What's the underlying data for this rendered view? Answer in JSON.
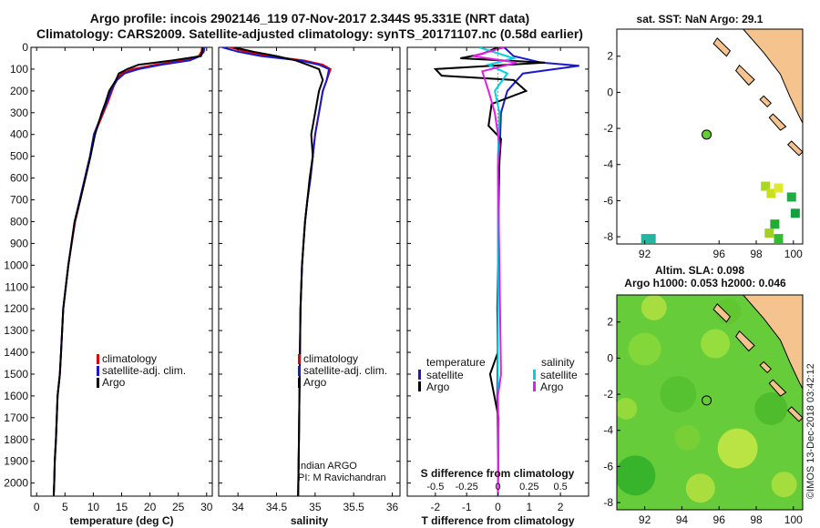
{
  "title_line1": "Argo profile: incois 2902146_119 07-Nov-2017 2.344S 95.331E (NRT data)",
  "title_line2": "Climatology: CARS2009. Satellite-adjusted climatology: synTS_20171107.nc (0.58d earlier)",
  "watermark": "©IMOS 13-Dec-2018 03:42:12",
  "colors": {
    "climatology": "#e00000",
    "satellite": "#1a1acc",
    "argo": "#000000",
    "sat_cyan": "#00d0e0",
    "argo_magenta": "#e020e0",
    "land": "#f5c48e",
    "float": "#66cc33"
  },
  "depth_ticks": [
    0,
    100,
    200,
    300,
    400,
    500,
    600,
    700,
    800,
    900,
    1000,
    1100,
    1200,
    1300,
    1400,
    1500,
    1600,
    1700,
    1800,
    1900,
    2000
  ],
  "chart_data": [
    {
      "type": "line",
      "title": "",
      "xlabel": "temperature (deg C)",
      "ylabel": "depth",
      "xlim": [
        -1,
        31
      ],
      "ylim": [
        2060,
        0
      ],
      "xticks": [
        0,
        5,
        10,
        15,
        20,
        25,
        30
      ],
      "xticklabels": [
        "0",
        "5",
        "10",
        "15",
        "20",
        "25",
        "30"
      ],
      "legend": [
        "climatology",
        "satellite-adj. clim.",
        "Argo"
      ],
      "series": [
        {
          "name": "climatology",
          "color": "#e00000",
          "x": [
            29.2,
            29.1,
            28.6,
            26,
            21,
            17,
            15,
            14,
            13.3,
            12.6,
            11.8,
            10.2,
            9.5,
            8.6,
            7.7,
            6.8,
            5.6,
            4.7,
            4.3,
            4.1,
            3.7,
            3.4,
            3.2,
            3.1,
            3.0
          ],
          "y": [
            0,
            20,
            40,
            60,
            80,
            100,
            120,
            150,
            200,
            250,
            300,
            400,
            500,
            600,
            700,
            800,
            1000,
            1200,
            1400,
            1500,
            1600,
            1800,
            1900,
            2000,
            2060
          ]
        },
        {
          "name": "satellite-adj. clim.",
          "color": "#1a1acc",
          "x": [
            29.6,
            29.5,
            28.9,
            27,
            22,
            18,
            15.5,
            14.2,
            13.1,
            12.4,
            11.6,
            10.1,
            9.4,
            8.5,
            7.6,
            6.7,
            5.6,
            4.7,
            4.3,
            4.1,
            3.7,
            3.4,
            3.2,
            3.1,
            3.0
          ],
          "y": [
            0,
            20,
            40,
            60,
            80,
            100,
            120,
            150,
            200,
            250,
            300,
            400,
            500,
            600,
            700,
            800,
            1000,
            1200,
            1400,
            1500,
            1600,
            1800,
            1900,
            2000,
            2060
          ]
        },
        {
          "name": "Argo",
          "color": "#000000",
          "x": [
            29.3,
            29.2,
            29.0,
            24,
            18,
            16,
            14.5,
            14,
            12.8,
            12.2,
            11.5,
            10.3,
            9.5,
            8.6,
            7.7,
            6.7,
            5.6,
            4.7,
            4.3,
            4.1,
            3.7,
            3.4,
            3.2,
            3.1,
            3.0
          ],
          "y": [
            0,
            20,
            40,
            60,
            80,
            100,
            120,
            150,
            200,
            250,
            300,
            400,
            500,
            600,
            700,
            800,
            1000,
            1200,
            1400,
            1500,
            1600,
            1800,
            1900,
            2000,
            2060
          ]
        }
      ]
    },
    {
      "type": "line",
      "title": "",
      "xlabel": "salinity",
      "ylabel": "",
      "xlim": [
        33.75,
        36.1
      ],
      "ylim": [
        2060,
        0
      ],
      "xticks": [
        34,
        34.5,
        35,
        35.5,
        36
      ],
      "xticklabels": [
        "34",
        "34.5",
        "35",
        "35.5",
        "36"
      ],
      "legend": [
        "climatology",
        "satellite-adj. clim.",
        "Argo"
      ],
      "annotation": [
        "Indian ARGO",
        "PI: M Ravichandran"
      ],
      "series": [
        {
          "name": "climatology",
          "color": "#e00000",
          "x": [
            33.9,
            34.1,
            34.4,
            34.85,
            35.1,
            35.2,
            35.15,
            35.1,
            35.05,
            35.0,
            34.97,
            34.94,
            34.9,
            34.87,
            34.85,
            34.83,
            34.81,
            34.8,
            34.79,
            34.78
          ],
          "y": [
            0,
            20,
            40,
            60,
            80,
            100,
            150,
            200,
            300,
            400,
            500,
            600,
            700,
            800,
            900,
            1000,
            1200,
            1500,
            1800,
            2060
          ]
        },
        {
          "name": "satellite-adj. clim.",
          "color": "#1a1acc",
          "x": [
            33.8,
            34.0,
            34.3,
            34.8,
            35.05,
            35.18,
            35.15,
            35.1,
            35.05,
            35.0,
            34.97,
            34.94,
            34.9,
            34.87,
            34.85,
            34.83,
            34.81,
            34.8,
            34.79,
            34.78
          ],
          "y": [
            0,
            20,
            40,
            60,
            80,
            100,
            150,
            200,
            300,
            400,
            500,
            600,
            700,
            800,
            900,
            1000,
            1200,
            1500,
            1800,
            2060
          ]
        },
        {
          "name": "Argo",
          "color": "#000000",
          "x": [
            33.95,
            34.2,
            34.5,
            34.75,
            34.9,
            35.05,
            35.1,
            35.05,
            35.0,
            34.95,
            34.97,
            34.93,
            34.9,
            34.87,
            34.85,
            34.83,
            34.81,
            34.8,
            34.79,
            34.78
          ],
          "y": [
            0,
            20,
            40,
            60,
            80,
            100,
            150,
            200,
            300,
            400,
            500,
            600,
            700,
            800,
            900,
            1000,
            1200,
            1500,
            1800,
            2060
          ]
        }
      ]
    },
    {
      "type": "line",
      "title": "S difference from climatology",
      "xlabel": "T difference from climatology",
      "ylabel": "",
      "xlim": [
        -2.9,
        2.9
      ],
      "ylim": [
        2060,
        0
      ],
      "xticks": [
        -2,
        -1,
        0,
        1,
        2
      ],
      "xticklabels": [
        "-2",
        "-1",
        "0",
        "1",
        "2"
      ],
      "s_ticks": [
        -0.5,
        -0.25,
        0,
        0.25,
        0.5
      ],
      "s_ticklabels": [
        "-0.5",
        "-0.25",
        "0",
        "0.25",
        "0.5"
      ],
      "legend_temperature": {
        "heading": "temperature",
        "items": [
          "satellite",
          "Argo"
        ]
      },
      "legend_salinity": {
        "heading": "salinity",
        "items": [
          "satellite",
          "Argo"
        ]
      },
      "series": [
        {
          "name": "temperature satellite",
          "color": "#1a1acc",
          "x": [
            0.2,
            0.5,
            1.4,
            2.6,
            0.8,
            0.3,
            0.1,
            0.05,
            0.02,
            0,
            -0.02,
            0,
            0
          ],
          "y": [
            0,
            40,
            70,
            85,
            120,
            200,
            300,
            500,
            800,
            1200,
            1600,
            1900,
            2060
          ]
        },
        {
          "name": "temperature Argo",
          "color": "#000000",
          "x": [
            0,
            -0.5,
            -1.2,
            1.5,
            -2.0,
            -1.8,
            0.5,
            0.9,
            -0.2,
            -0.3,
            0.1,
            0.05,
            0,
            0.02,
            0,
            0,
            -0.02,
            0,
            -0.25,
            0.02,
            0
          ],
          "y": [
            0,
            30,
            50,
            70,
            100,
            130,
            150,
            200,
            260,
            360,
            420,
            520,
            700,
            800,
            900,
            1000,
            1200,
            1400,
            1500,
            1700,
            2060
          ]
        },
        {
          "name": "salinity satellite",
          "color": "#00d0e0",
          "x": [
            -0.6,
            0.5,
            -0.3,
            0.3,
            -0.1,
            0.05,
            0,
            0,
            0,
            0
          ],
          "y": [
            0,
            50,
            80,
            120,
            200,
            300,
            500,
            900,
            1500,
            2060
          ]
        },
        {
          "name": "salinity Argo",
          "color": "#e020e0",
          "x": [
            0.2,
            -0.8,
            0.6,
            -0.5,
            -0.3,
            -0.1,
            0.05,
            0,
            0.1,
            0,
            0.02,
            0
          ],
          "y": [
            0,
            40,
            70,
            110,
            200,
            300,
            450,
            550,
            1500,
            1600,
            1800,
            2060
          ]
        }
      ]
    },
    {
      "type": "scatter",
      "title": "sat. SST: NaN Argo: 29.1",
      "xlabel": "",
      "ylabel": "",
      "xlim": [
        90.5,
        100.5
      ],
      "ylim": [
        -8.4,
        3.5
      ],
      "xticks": [
        92,
        96,
        98,
        100
      ],
      "xticklabels": [
        "92",
        "96",
        "98",
        "100"
      ],
      "yticks": [
        2,
        0,
        -2,
        -4,
        -6,
        -8
      ],
      "yticklabels": [
        "2",
        "0",
        "-2",
        "-4",
        "-6",
        "-8"
      ],
      "float_lon": 95.33,
      "float_lat": -2.34,
      "sst_patches": [
        {
          "lon": 98.5,
          "lat": -5.2,
          "color": "#a8d820"
        },
        {
          "lon": 98.8,
          "lat": -5.6,
          "color": "#c8e020"
        },
        {
          "lon": 99.2,
          "lat": -5.3,
          "color": "#e0e830"
        },
        {
          "lon": 99.9,
          "lat": -5.8,
          "color": "#22aa44"
        },
        {
          "lon": 100.1,
          "lat": -6.7,
          "color": "#10a040"
        },
        {
          "lon": 99.0,
          "lat": -7.3,
          "color": "#22aa33"
        },
        {
          "lon": 98.7,
          "lat": -7.8,
          "color": "#a0d020"
        },
        {
          "lon": 99.2,
          "lat": -8.1,
          "color": "#33bb33"
        },
        {
          "lon": 92.2,
          "lat": -8.1,
          "color": "#20b8a0"
        }
      ]
    },
    {
      "type": "heatmap",
      "title": "Altim. SLA: 0.098",
      "subtitle": "Argo h1000: 0.053 h2000: 0.046",
      "xlabel": "",
      "ylabel": "",
      "xlim": [
        90.5,
        100.5
      ],
      "ylim": [
        -8.4,
        3.5
      ],
      "xticks": [
        92,
        94,
        96,
        98,
        100
      ],
      "xticklabels": [
        "92",
        "94",
        "96",
        "98",
        "100"
      ],
      "yticks": [
        2,
        0,
        -2,
        -4,
        -6,
        -8
      ],
      "yticklabels": [
        "2",
        "0",
        "-2",
        "-4",
        "-6",
        "-8"
      ],
      "float_lon": 95.33,
      "float_lat": -2.34
    }
  ]
}
